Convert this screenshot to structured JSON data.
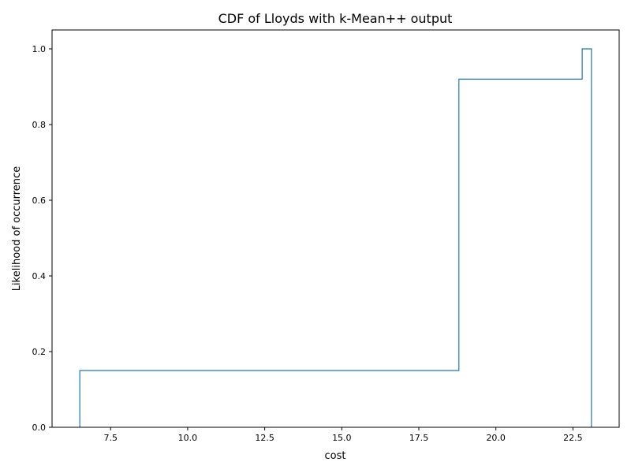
{
  "chart_data": {
    "type": "line",
    "title": "CDF of Lloyds with k-Mean++ output",
    "xlabel": "cost",
    "ylabel": "Likelihood of occurrence",
    "xlim": [
      5.6,
      24.0
    ],
    "ylim": [
      0.0,
      1.05
    ],
    "x_ticks": [
      7.5,
      10.0,
      12.5,
      15.0,
      17.5,
      20.0,
      22.5
    ],
    "x_tick_labels": [
      "7.5",
      "10.0",
      "12.5",
      "15.0",
      "17.5",
      "20.0",
      "22.5"
    ],
    "y_ticks": [
      0.0,
      0.2,
      0.4,
      0.6,
      0.8,
      1.0
    ],
    "y_tick_labels": [
      "0.0",
      "0.2",
      "0.4",
      "0.6",
      "0.8",
      "1.0"
    ],
    "grid": false,
    "series": [
      {
        "style": "step",
        "color": "#1f77b4",
        "x": [
          6.5,
          6.5,
          18.8,
          18.8,
          22.8,
          22.8,
          23.1,
          23.1
        ],
        "y": [
          0.0,
          0.15,
          0.15,
          0.92,
          0.92,
          1.0,
          1.0,
          0.0
        ]
      }
    ]
  }
}
